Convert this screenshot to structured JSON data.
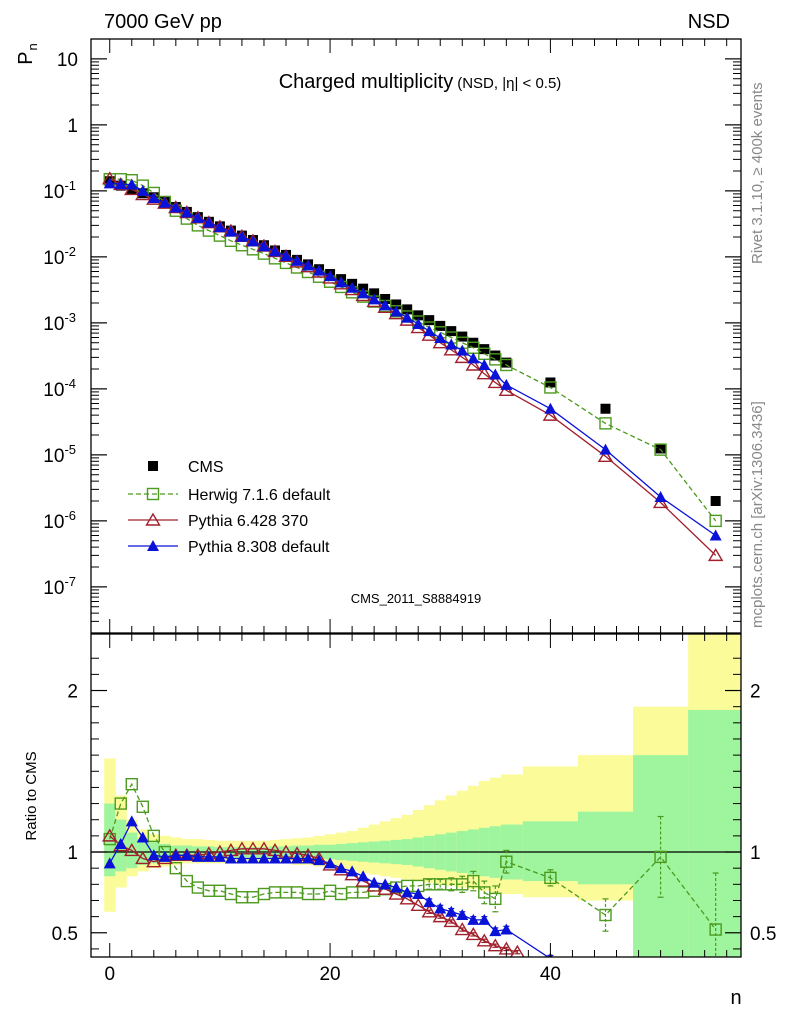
{
  "header": {
    "energy": "7000 GeV pp",
    "process": "NSD"
  },
  "side_labels": {
    "rivet": "Rivet 3.1.10, ≥ 400k events",
    "mcplots": "mcplots.cern.ch [arXiv:1306.3436]"
  },
  "analysis_id": "CMS_2011_S8884919",
  "colors": {
    "cms": "#000000",
    "herwig": "#4c9a1e",
    "pythia6": "#a0202c",
    "pythia8": "#0a12d8",
    "band_inner": "#9ef59e",
    "band_outer": "#fbfb9a"
  },
  "chart_data": [
    {
      "type": "scatter",
      "title": "Charged multiplicity",
      "subtitle": "(NSD, |η| < 0.5)",
      "ylabel": "P",
      "ylabel_sub": "n",
      "yscale": "log",
      "ylim": [
        2e-08,
        20
      ],
      "xlim": [
        -1.7,
        57.3
      ],
      "y_ticks": [
        {
          "value": 10,
          "label": "10"
        },
        {
          "value": 1,
          "label": "1"
        },
        {
          "value": 0.1,
          "base": "10",
          "exp": "-1"
        },
        {
          "value": 0.01,
          "base": "10",
          "exp": "-2"
        },
        {
          "value": 0.001,
          "base": "10",
          "exp": "-3"
        },
        {
          "value": 0.0001,
          "base": "10",
          "exp": "-4"
        },
        {
          "value": 1e-05,
          "base": "10",
          "exp": "-5"
        },
        {
          "value": 1e-06,
          "base": "10",
          "exp": "-6"
        },
        {
          "value": 1e-07,
          "base": "10",
          "exp": "-7"
        }
      ],
      "legend_position": "bottom-left",
      "series": [
        {
          "name": "CMS",
          "x": [
            0,
            1,
            2,
            3,
            4,
            5,
            6,
            7,
            8,
            9,
            10,
            11,
            12,
            13,
            14,
            15,
            16,
            17,
            18,
            19,
            20,
            21,
            22,
            23,
            24,
            25,
            26,
            27,
            28,
            29,
            30,
            31,
            32,
            33,
            34,
            35,
            36,
            40,
            45,
            50,
            55
          ],
          "y": [
            0.14,
            0.12,
            0.105,
            0.092,
            0.08,
            0.068,
            0.057,
            0.048,
            0.04,
            0.034,
            0.029,
            0.025,
            0.021,
            0.018,
            0.015,
            0.0125,
            0.0107,
            0.009,
            0.0077,
            0.0065,
            0.0055,
            0.0046,
            0.0039,
            0.0033,
            0.0028,
            0.0023,
            0.0019,
            0.0016,
            0.0013,
            0.0011,
            0.0009,
            0.00075,
            0.00062,
            0.0005,
            0.0004,
            0.00032,
            0.00025,
            0.000125,
            5e-05,
            1.25e-05,
            2e-06
          ]
        },
        {
          "name": "Herwig 7.1.6 default",
          "x": [
            0,
            1,
            2,
            3,
            4,
            5,
            6,
            7,
            8,
            9,
            10,
            11,
            12,
            13,
            14,
            15,
            16,
            17,
            18,
            19,
            20,
            21,
            22,
            23,
            24,
            25,
            26,
            27,
            28,
            29,
            30,
            31,
            32,
            33,
            34,
            35,
            36,
            40,
            45,
            50,
            55
          ],
          "y": [
            0.15,
            0.15,
            0.145,
            0.12,
            0.093,
            0.068,
            0.05,
            0.038,
            0.03,
            0.025,
            0.021,
            0.0175,
            0.015,
            0.013,
            0.0112,
            0.0095,
            0.0081,
            0.0069,
            0.0059,
            0.005,
            0.0042,
            0.0035,
            0.0029,
            0.0025,
            0.0021,
            0.0018,
            0.0015,
            0.00125,
            0.00105,
            0.00085,
            0.00072,
            0.0006,
            0.0005,
            0.00042,
            0.00034,
            0.00028,
            0.00023,
            0.000105,
            3e-05,
            1.2e-05,
            1e-06
          ]
        },
        {
          "name": "Pythia 6.428 370",
          "x": [
            0,
            1,
            2,
            3,
            4,
            5,
            6,
            7,
            8,
            9,
            10,
            11,
            12,
            13,
            14,
            15,
            16,
            17,
            18,
            19,
            20,
            21,
            22,
            23,
            24,
            25,
            26,
            27,
            28,
            29,
            30,
            31,
            32,
            33,
            34,
            35,
            36,
            40,
            45,
            50,
            55
          ],
          "y": [
            0.153,
            0.125,
            0.105,
            0.088,
            0.075,
            0.065,
            0.056,
            0.047,
            0.039,
            0.033,
            0.0285,
            0.0247,
            0.0205,
            0.0175,
            0.0146,
            0.0121,
            0.0102,
            0.0084,
            0.0071,
            0.0059,
            0.0048,
            0.0039,
            0.0032,
            0.0026,
            0.00211,
            0.00172,
            0.00138,
            0.0011,
            0.00085,
            0.00065,
            0.0005,
            0.00039,
            0.0003,
            0.00023,
            0.00017,
            0.000125,
            9.5e-05,
            4e-05,
            9.5e-06,
            1.9e-06,
            3e-07
          ]
        },
        {
          "name": "Pythia 8.308 default",
          "x": [
            0,
            1,
            2,
            3,
            4,
            5,
            6,
            7,
            8,
            9,
            10,
            11,
            12,
            13,
            14,
            15,
            16,
            17,
            18,
            19,
            20,
            21,
            22,
            23,
            24,
            25,
            26,
            27,
            28,
            29,
            30,
            31,
            32,
            33,
            34,
            35,
            36,
            40,
            45,
            50,
            55
          ],
          "y": [
            0.13,
            0.126,
            0.125,
            0.1,
            0.078,
            0.066,
            0.056,
            0.047,
            0.039,
            0.033,
            0.0282,
            0.0241,
            0.0202,
            0.0172,
            0.0145,
            0.0121,
            0.0103,
            0.0087,
            0.0074,
            0.0062,
            0.0051,
            0.0041,
            0.0034,
            0.0028,
            0.00227,
            0.00184,
            0.00149,
            0.0012,
            0.00096,
            0.00075,
            0.00059,
            0.00047,
            0.00038,
            0.00029,
            0.00023,
            0.000165,
            0.000115,
            5e-05,
            1.2e-05,
            2.3e-06,
            6e-07
          ]
        }
      ]
    },
    {
      "type": "scatter",
      "ylabel": "Ratio to CMS",
      "xlabel": "n",
      "ylim": [
        0.35,
        2.35
      ],
      "xlim": [
        -1.7,
        57.3
      ],
      "x_ticks": [
        0,
        20,
        40
      ],
      "y_ticks": [
        0.5,
        1,
        2
      ],
      "bands": {
        "edges": [
          -0.5,
          0.5,
          1.5,
          2.5,
          3.5,
          4.5,
          5.5,
          6.5,
          7.5,
          8.5,
          9.5,
          10.5,
          11.5,
          12.5,
          13.5,
          14.5,
          15.5,
          16.5,
          17.5,
          18.5,
          19.5,
          20.5,
          21.5,
          22.5,
          23.5,
          24.5,
          25.5,
          26.5,
          27.5,
          28.5,
          29.5,
          30.5,
          31.5,
          32.5,
          33.5,
          34.5,
          35.5,
          37.5,
          42.5,
          47.5,
          52.5,
          57.3
        ],
        "inner_low": [
          0.85,
          0.88,
          0.9,
          0.92,
          0.93,
          0.94,
          0.95,
          0.96,
          0.96,
          0.965,
          0.965,
          0.965,
          0.965,
          0.965,
          0.965,
          0.965,
          0.965,
          0.965,
          0.96,
          0.96,
          0.955,
          0.95,
          0.945,
          0.94,
          0.935,
          0.93,
          0.925,
          0.92,
          0.91,
          0.9,
          0.89,
          0.88,
          0.87,
          0.86,
          0.85,
          0.84,
          0.83,
          0.82,
          0.8,
          0.0,
          0.0
        ],
        "inner_high": [
          1.3,
          1.2,
          1.12,
          1.08,
          1.06,
          1.05,
          1.04,
          1.04,
          1.035,
          1.035,
          1.03,
          1.03,
          1.03,
          1.03,
          1.03,
          1.035,
          1.035,
          1.04,
          1.04,
          1.045,
          1.045,
          1.05,
          1.055,
          1.06,
          1.065,
          1.07,
          1.075,
          1.08,
          1.09,
          1.1,
          1.11,
          1.12,
          1.13,
          1.14,
          1.15,
          1.16,
          1.17,
          1.19,
          1.25,
          1.6,
          1.88
        ],
        "outer_low": [
          0.63,
          0.78,
          0.85,
          0.88,
          0.9,
          0.91,
          0.92,
          0.93,
          0.93,
          0.93,
          0.93,
          0.93,
          0.93,
          0.93,
          0.93,
          0.93,
          0.93,
          0.92,
          0.92,
          0.91,
          0.9,
          0.89,
          0.88,
          0.87,
          0.86,
          0.85,
          0.84,
          0.83,
          0.82,
          0.81,
          0.8,
          0.79,
          0.78,
          0.77,
          0.76,
          0.75,
          0.74,
          0.72,
          0.7,
          0.0,
          0.0
        ],
        "outer_high": [
          1.58,
          1.35,
          1.2,
          1.14,
          1.11,
          1.1,
          1.09,
          1.08,
          1.08,
          1.075,
          1.07,
          1.07,
          1.07,
          1.07,
          1.07,
          1.075,
          1.08,
          1.085,
          1.09,
          1.1,
          1.11,
          1.12,
          1.13,
          1.15,
          1.17,
          1.19,
          1.21,
          1.23,
          1.26,
          1.29,
          1.32,
          1.35,
          1.38,
          1.41,
          1.44,
          1.46,
          1.48,
          1.53,
          1.6,
          1.9,
          2.6
        ]
      },
      "series": [
        {
          "name": "Herwig 7.1.6 default",
          "x": [
            0,
            1,
            2,
            3,
            4,
            5,
            6,
            7,
            8,
            9,
            10,
            11,
            12,
            13,
            14,
            15,
            16,
            17,
            18,
            19,
            20,
            21,
            22,
            23,
            24,
            25,
            26,
            27,
            28,
            29,
            30,
            31,
            32,
            33,
            34,
            35,
            36,
            40,
            45,
            50,
            55
          ],
          "y": [
            1.08,
            1.3,
            1.42,
            1.28,
            1.1,
            1.0,
            0.9,
            0.82,
            0.78,
            0.76,
            0.76,
            0.74,
            0.72,
            0.72,
            0.74,
            0.75,
            0.75,
            0.75,
            0.74,
            0.74,
            0.76,
            0.74,
            0.75,
            0.75,
            0.76,
            0.77,
            0.78,
            0.79,
            0.79,
            0.8,
            0.8,
            0.8,
            0.8,
            0.82,
            0.75,
            0.71,
            0.94,
            0.84,
            0.61,
            0.97,
            0.52
          ],
          "err": [
            0,
            0,
            0,
            0,
            0,
            0,
            0,
            0,
            0,
            0,
            0,
            0,
            0,
            0,
            0,
            0,
            0,
            0,
            0,
            0,
            0,
            0,
            0,
            0,
            0,
            0,
            0,
            0,
            0,
            0.03,
            0.03,
            0.04,
            0.05,
            0.06,
            0.07,
            0.08,
            0.07,
            0.05,
            0.1,
            0.25,
            0.35
          ]
        },
        {
          "name": "Pythia 6.428 370",
          "x": [
            0,
            1,
            2,
            3,
            4,
            5,
            6,
            7,
            8,
            9,
            10,
            11,
            12,
            13,
            14,
            15,
            16,
            17,
            18,
            19,
            20,
            21,
            22,
            23,
            24,
            25,
            26,
            27,
            28,
            29,
            30,
            31,
            32,
            33,
            34,
            35,
            36,
            37
          ],
          "y": [
            1.1,
            1.04,
            1.01,
            0.96,
            0.94,
            0.96,
            0.98,
            0.98,
            0.98,
            0.99,
            1.0,
            1.01,
            1.02,
            1.02,
            1.02,
            1.01,
            1.0,
            0.99,
            0.98,
            0.96,
            0.92,
            0.89,
            0.86,
            0.82,
            0.79,
            0.77,
            0.74,
            0.71,
            0.67,
            0.63,
            0.6,
            0.57,
            0.52,
            0.49,
            0.45,
            0.42,
            0.4,
            0.38
          ],
          "err": [
            0,
            0,
            0,
            0,
            0,
            0,
            0,
            0,
            0,
            0,
            0,
            0,
            0,
            0,
            0,
            0,
            0,
            0,
            0,
            0,
            0,
            0,
            0,
            0,
            0,
            0,
            0,
            0,
            0,
            0.01,
            0.01,
            0.01,
            0.01,
            0.01,
            0.01,
            0.01,
            0.01,
            0.01
          ]
        },
        {
          "name": "Pythia 8.308 default",
          "x": [
            0,
            1,
            2,
            3,
            4,
            5,
            6,
            7,
            8,
            9,
            10,
            11,
            12,
            13,
            14,
            15,
            16,
            17,
            18,
            19,
            20,
            21,
            22,
            23,
            24,
            25,
            26,
            27,
            28,
            29,
            30,
            31,
            32,
            33,
            34,
            35,
            36,
            40
          ],
          "y": [
            0.93,
            1.05,
            1.19,
            1.09,
            0.98,
            0.97,
            0.98,
            0.98,
            0.97,
            0.97,
            0.97,
            0.96,
            0.96,
            0.96,
            0.96,
            0.96,
            0.96,
            0.96,
            0.96,
            0.95,
            0.93,
            0.9,
            0.88,
            0.85,
            0.81,
            0.8,
            0.78,
            0.75,
            0.74,
            0.69,
            0.65,
            0.63,
            0.61,
            0.58,
            0.58,
            0.51,
            0.52,
            0.34
          ],
          "err": [
            0,
            0,
            0,
            0,
            0,
            0,
            0,
            0,
            0,
            0,
            0,
            0,
            0,
            0,
            0,
            0,
            0,
            0,
            0,
            0,
            0,
            0,
            0,
            0,
            0,
            0,
            0,
            0,
            0,
            0.02,
            0.02,
            0.02,
            0.02,
            0.02,
            0.02,
            0.02,
            0.02,
            0.02
          ]
        }
      ]
    }
  ]
}
